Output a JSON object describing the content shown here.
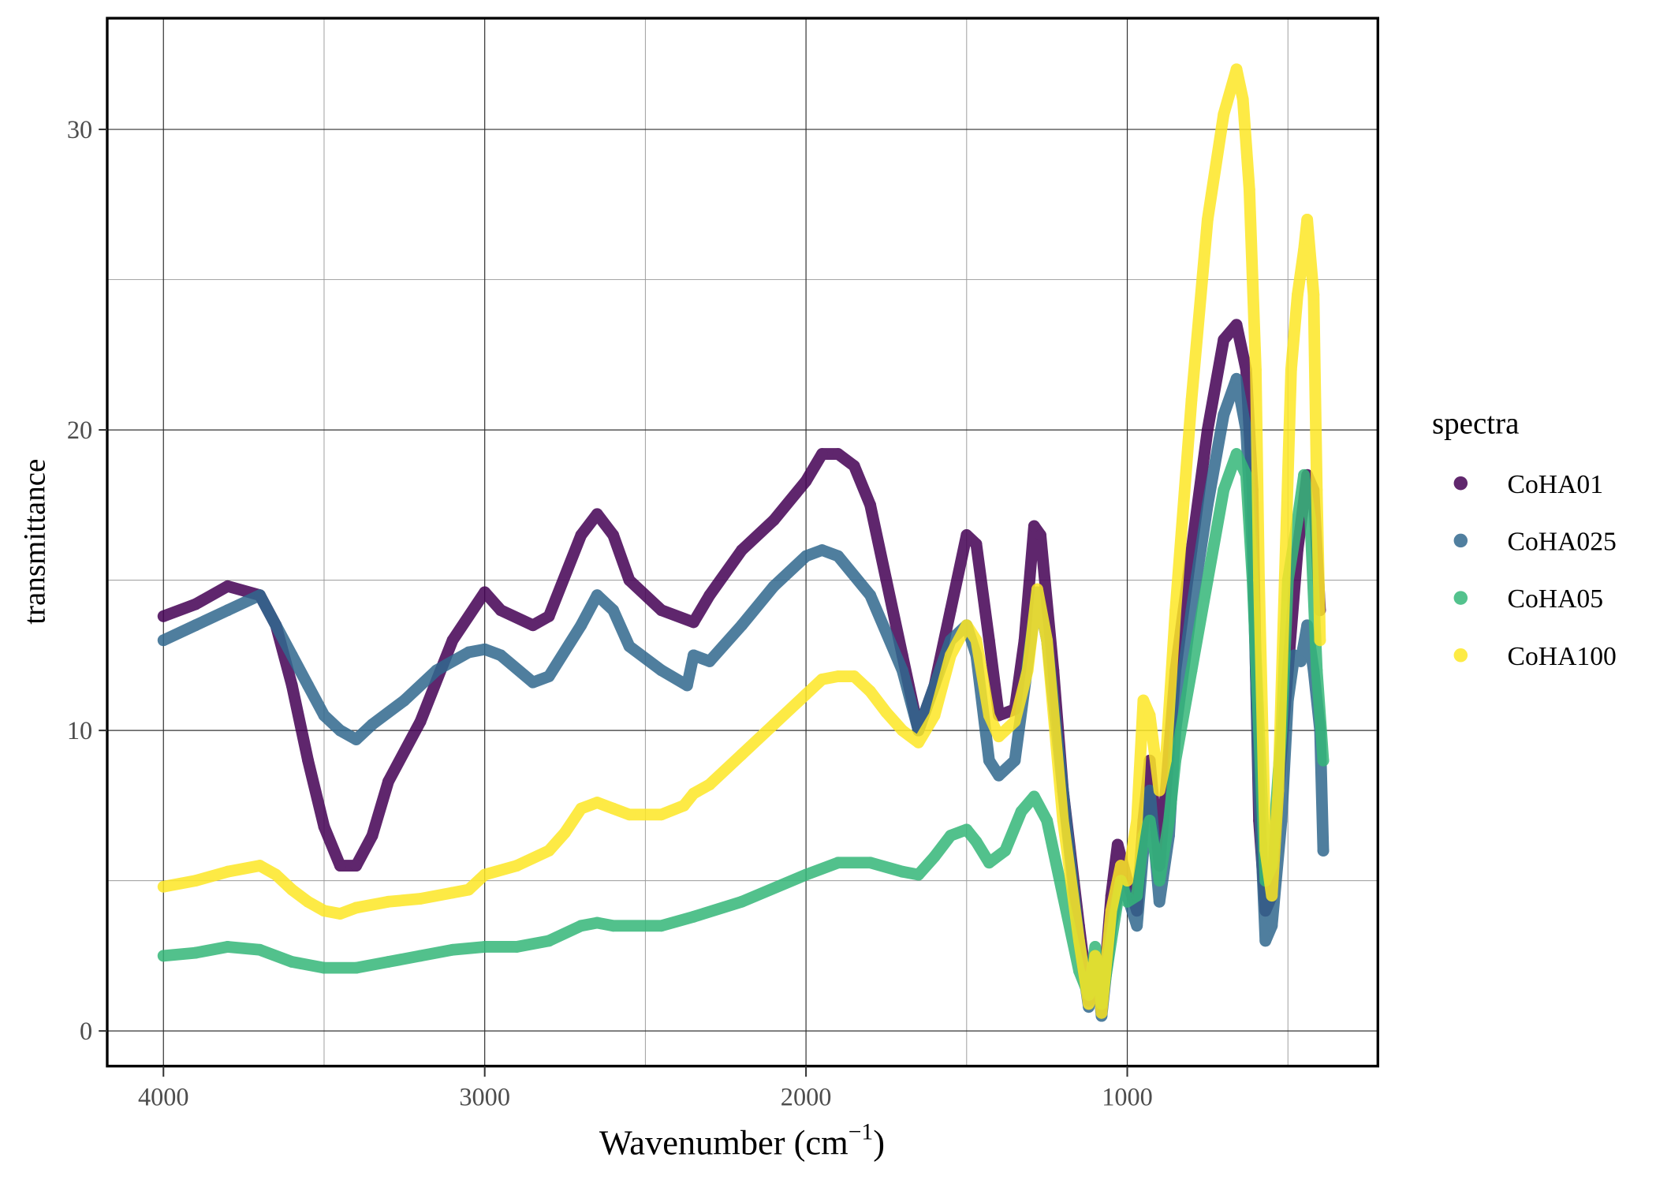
{
  "chart_data": {
    "type": "scatter",
    "xlabel": "Wavenumber (cm",
    "xlabel_sup": "−1",
    "xlabel_close": ")",
    "ylabel": "transmittance",
    "xlim": [
      4175,
      220
    ],
    "x_reversed": true,
    "ylim": [
      -1.17,
      33.7
    ],
    "grid": true,
    "x_ticks": [
      4000,
      3000,
      2000,
      1000
    ],
    "x_tick_labels": [
      "4000",
      "3000",
      "2000",
      "1000"
    ],
    "y_ticks": [
      0,
      10,
      20,
      30
    ],
    "y_tick_labels": [
      "0",
      "10",
      "20",
      "30"
    ],
    "legend": {
      "title": "spectra",
      "placement": "right"
    },
    "series": [
      {
        "name": "CoHA01",
        "color": "#440154",
        "points": [
          [
            4000,
            13.8
          ],
          [
            3900,
            14.2
          ],
          [
            3800,
            14.8
          ],
          [
            3700,
            14.5
          ],
          [
            3650,
            13.5
          ],
          [
            3600,
            11.5
          ],
          [
            3550,
            9
          ],
          [
            3500,
            6.8
          ],
          [
            3450,
            5.5
          ],
          [
            3400,
            5.5
          ],
          [
            3350,
            6.5
          ],
          [
            3300,
            8.3
          ],
          [
            3200,
            10.3
          ],
          [
            3100,
            13
          ],
          [
            3000,
            14.6
          ],
          [
            2950,
            14
          ],
          [
            2850,
            13.5
          ],
          [
            2800,
            13.8
          ],
          [
            2700,
            16.5
          ],
          [
            2650,
            17.2
          ],
          [
            2600,
            16.5
          ],
          [
            2550,
            15
          ],
          [
            2450,
            14
          ],
          [
            2350,
            13.6
          ],
          [
            2300,
            14.5
          ],
          [
            2200,
            16
          ],
          [
            2100,
            17
          ],
          [
            2000,
            18.3
          ],
          [
            1950,
            19.2
          ],
          [
            1900,
            19.2
          ],
          [
            1850,
            18.8
          ],
          [
            1800,
            17.5
          ],
          [
            1750,
            15
          ],
          [
            1700,
            12.5
          ],
          [
            1650,
            10
          ],
          [
            1600,
            11.5
          ],
          [
            1550,
            14
          ],
          [
            1500,
            16.5
          ],
          [
            1470,
            16.2
          ],
          [
            1430,
            13
          ],
          [
            1400,
            10.5
          ],
          [
            1350,
            10.7
          ],
          [
            1320,
            13
          ],
          [
            1290,
            16.8
          ],
          [
            1270,
            16.5
          ],
          [
            1230,
            12
          ],
          [
            1200,
            8
          ],
          [
            1150,
            3.5
          ],
          [
            1120,
            1
          ],
          [
            1100,
            2.5
          ],
          [
            1080,
            0.6
          ],
          [
            1050,
            4.5
          ],
          [
            1030,
            6.2
          ],
          [
            1000,
            5
          ],
          [
            970,
            4
          ],
          [
            950,
            7
          ],
          [
            930,
            9
          ],
          [
            900,
            5.5
          ],
          [
            880,
            8
          ],
          [
            850,
            12
          ],
          [
            800,
            16
          ],
          [
            750,
            20
          ],
          [
            700,
            23
          ],
          [
            660,
            23.5
          ],
          [
            630,
            22
          ],
          [
            610,
            18
          ],
          [
            600,
            12
          ],
          [
            590,
            7
          ],
          [
            570,
            4
          ],
          [
            550,
            4.5
          ],
          [
            530,
            8
          ],
          [
            500,
            12
          ],
          [
            470,
            16
          ],
          [
            440,
            18.5
          ],
          [
            420,
            18
          ],
          [
            400,
            14
          ]
        ]
      },
      {
        "name": "CoHA025",
        "color": "#31688e",
        "points": [
          [
            4000,
            13
          ],
          [
            3900,
            13.5
          ],
          [
            3800,
            14
          ],
          [
            3700,
            14.5
          ],
          [
            3650,
            13.5
          ],
          [
            3600,
            12.5
          ],
          [
            3550,
            11.5
          ],
          [
            3500,
            10.5
          ],
          [
            3450,
            10
          ],
          [
            3400,
            9.7
          ],
          [
            3350,
            10.2
          ],
          [
            3250,
            11
          ],
          [
            3150,
            12
          ],
          [
            3050,
            12.6
          ],
          [
            3000,
            12.7
          ],
          [
            2950,
            12.5
          ],
          [
            2850,
            11.6
          ],
          [
            2800,
            11.8
          ],
          [
            2700,
            13.5
          ],
          [
            2650,
            14.5
          ],
          [
            2600,
            14
          ],
          [
            2550,
            12.8
          ],
          [
            2450,
            12
          ],
          [
            2370,
            11.5
          ],
          [
            2350,
            12.5
          ],
          [
            2300,
            12.3
          ],
          [
            2200,
            13.5
          ],
          [
            2100,
            14.8
          ],
          [
            2000,
            15.8
          ],
          [
            1950,
            16
          ],
          [
            1900,
            15.8
          ],
          [
            1800,
            14.5
          ],
          [
            1700,
            12
          ],
          [
            1650,
            10
          ],
          [
            1600,
            11.5
          ],
          [
            1550,
            13
          ],
          [
            1500,
            13.5
          ],
          [
            1470,
            12.5
          ],
          [
            1430,
            9
          ],
          [
            1400,
            8.5
          ],
          [
            1350,
            9
          ],
          [
            1300,
            13
          ],
          [
            1280,
            14.6
          ],
          [
            1250,
            13
          ],
          [
            1200,
            8
          ],
          [
            1150,
            3
          ],
          [
            1120,
            0.8
          ],
          [
            1100,
            2.5
          ],
          [
            1080,
            0.5
          ],
          [
            1050,
            3.5
          ],
          [
            1020,
            5
          ],
          [
            1000,
            4.5
          ],
          [
            970,
            3.5
          ],
          [
            950,
            6
          ],
          [
            930,
            8
          ],
          [
            900,
            4.3
          ],
          [
            870,
            6.5
          ],
          [
            850,
            10
          ],
          [
            800,
            14
          ],
          [
            750,
            17.5
          ],
          [
            700,
            20.5
          ],
          [
            660,
            21.7
          ],
          [
            630,
            20
          ],
          [
            610,
            16
          ],
          [
            590,
            8
          ],
          [
            570,
            3
          ],
          [
            550,
            3.5
          ],
          [
            520,
            7
          ],
          [
            500,
            11
          ],
          [
            480,
            12.5
          ],
          [
            460,
            12.3
          ],
          [
            440,
            13.5
          ],
          [
            420,
            12
          ],
          [
            400,
            10
          ],
          [
            390,
            6
          ]
        ]
      },
      {
        "name": "CoHA05",
        "color": "#35b779",
        "points": [
          [
            4000,
            2.5
          ],
          [
            3900,
            2.6
          ],
          [
            3800,
            2.8
          ],
          [
            3700,
            2.7
          ],
          [
            3600,
            2.3
          ],
          [
            3500,
            2.1
          ],
          [
            3400,
            2.1
          ],
          [
            3300,
            2.3
          ],
          [
            3200,
            2.5
          ],
          [
            3100,
            2.7
          ],
          [
            3000,
            2.8
          ],
          [
            2900,
            2.8
          ],
          [
            2800,
            3
          ],
          [
            2700,
            3.5
          ],
          [
            2650,
            3.6
          ],
          [
            2600,
            3.5
          ],
          [
            2450,
            3.5
          ],
          [
            2350,
            3.8
          ],
          [
            2200,
            4.3
          ],
          [
            2000,
            5.2
          ],
          [
            1900,
            5.6
          ],
          [
            1800,
            5.6
          ],
          [
            1700,
            5.3
          ],
          [
            1650,
            5.2
          ],
          [
            1600,
            5.8
          ],
          [
            1550,
            6.5
          ],
          [
            1500,
            6.7
          ],
          [
            1470,
            6.3
          ],
          [
            1430,
            5.6
          ],
          [
            1380,
            6
          ],
          [
            1330,
            7.3
          ],
          [
            1290,
            7.8
          ],
          [
            1250,
            7
          ],
          [
            1200,
            4.5
          ],
          [
            1150,
            2
          ],
          [
            1120,
            1.2
          ],
          [
            1100,
            2.8
          ],
          [
            1080,
            0.9
          ],
          [
            1050,
            3
          ],
          [
            1020,
            5
          ],
          [
            1000,
            4.3
          ],
          [
            970,
            4.5
          ],
          [
            950,
            6.5
          ],
          [
            930,
            7
          ],
          [
            900,
            5
          ],
          [
            870,
            7
          ],
          [
            850,
            9
          ],
          [
            800,
            12
          ],
          [
            750,
            15
          ],
          [
            700,
            18
          ],
          [
            660,
            19.2
          ],
          [
            630,
            18.5
          ],
          [
            610,
            15
          ],
          [
            590,
            10
          ],
          [
            570,
            5
          ],
          [
            550,
            5.5
          ],
          [
            520,
            10
          ],
          [
            500,
            15
          ],
          [
            470,
            17
          ],
          [
            450,
            18.5
          ],
          [
            430,
            17
          ],
          [
            410,
            12
          ],
          [
            390,
            9
          ]
        ]
      },
      {
        "name": "CoHA100",
        "color": "#fde725",
        "points": [
          [
            4000,
            4.8
          ],
          [
            3900,
            5
          ],
          [
            3800,
            5.3
          ],
          [
            3700,
            5.5
          ],
          [
            3650,
            5.2
          ],
          [
            3600,
            4.7
          ],
          [
            3550,
            4.3
          ],
          [
            3500,
            4
          ],
          [
            3450,
            3.9
          ],
          [
            3400,
            4.1
          ],
          [
            3300,
            4.3
          ],
          [
            3200,
            4.4
          ],
          [
            3100,
            4.6
          ],
          [
            3050,
            4.7
          ],
          [
            3000,
            5.2
          ],
          [
            2900,
            5.5
          ],
          [
            2800,
            6
          ],
          [
            2750,
            6.6
          ],
          [
            2700,
            7.4
          ],
          [
            2650,
            7.6
          ],
          [
            2600,
            7.4
          ],
          [
            2550,
            7.2
          ],
          [
            2450,
            7.2
          ],
          [
            2380,
            7.5
          ],
          [
            2350,
            7.9
          ],
          [
            2300,
            8.2
          ],
          [
            2200,
            9.2
          ],
          [
            2100,
            10.2
          ],
          [
            2000,
            11.2
          ],
          [
            1950,
            11.7
          ],
          [
            1900,
            11.8
          ],
          [
            1850,
            11.8
          ],
          [
            1800,
            11.3
          ],
          [
            1750,
            10.6
          ],
          [
            1700,
            10
          ],
          [
            1650,
            9.6
          ],
          [
            1600,
            10.5
          ],
          [
            1550,
            12.5
          ],
          [
            1500,
            13.5
          ],
          [
            1470,
            13
          ],
          [
            1430,
            10.5
          ],
          [
            1400,
            9.8
          ],
          [
            1350,
            10.3
          ],
          [
            1310,
            12
          ],
          [
            1280,
            14.7
          ],
          [
            1250,
            13
          ],
          [
            1200,
            7
          ],
          [
            1150,
            3
          ],
          [
            1120,
            0.9
          ],
          [
            1100,
            2.5
          ],
          [
            1080,
            0.6
          ],
          [
            1050,
            4
          ],
          [
            1020,
            5.5
          ],
          [
            1000,
            5
          ],
          [
            970,
            7
          ],
          [
            950,
            11
          ],
          [
            930,
            10.5
          ],
          [
            900,
            8
          ],
          [
            880,
            9
          ],
          [
            850,
            14
          ],
          [
            800,
            21
          ],
          [
            750,
            27
          ],
          [
            700,
            30.5
          ],
          [
            660,
            32
          ],
          [
            640,
            31
          ],
          [
            620,
            28
          ],
          [
            600,
            22
          ],
          [
            590,
            15
          ],
          [
            570,
            6
          ],
          [
            550,
            4.5
          ],
          [
            530,
            8
          ],
          [
            510,
            15
          ],
          [
            490,
            22
          ],
          [
            470,
            24.5
          ],
          [
            450,
            26
          ],
          [
            440,
            27
          ],
          [
            420,
            24.5
          ],
          [
            410,
            18
          ],
          [
            400,
            13
          ]
        ]
      }
    ]
  }
}
